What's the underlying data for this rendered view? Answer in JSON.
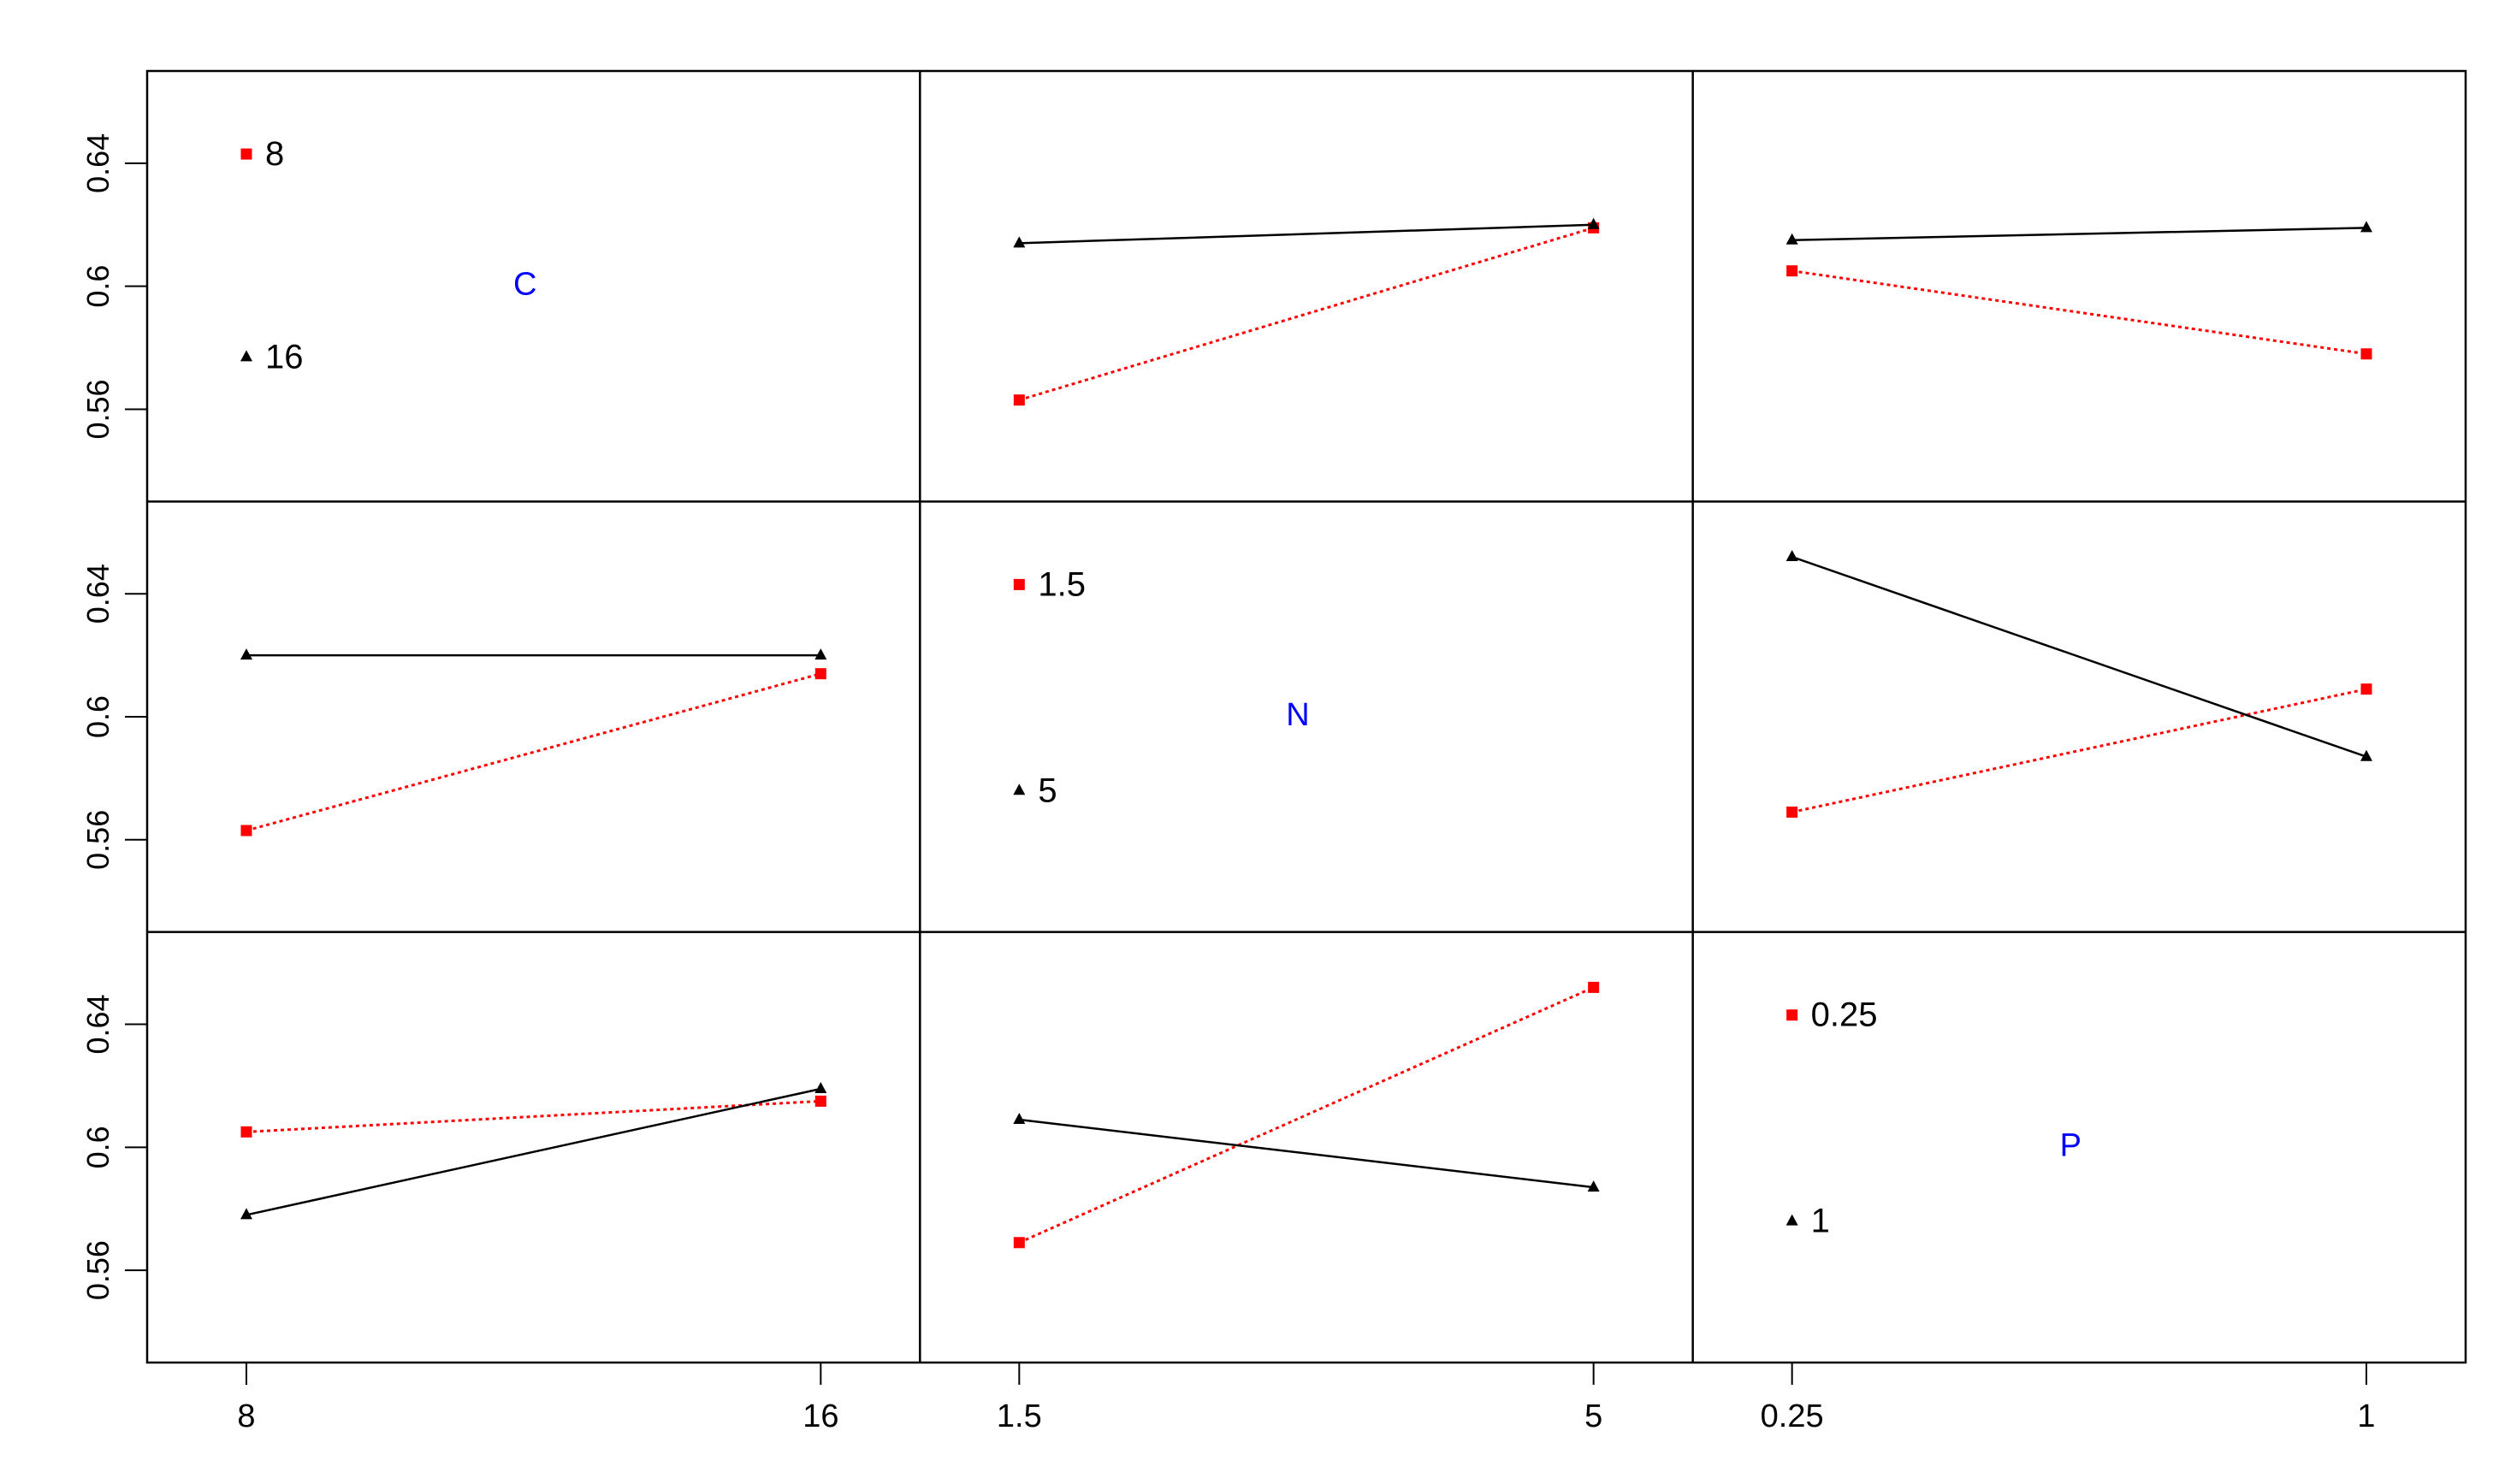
{
  "chart_data": {
    "type": "line",
    "title": "",
    "ylim": [
      0.53,
      0.67
    ],
    "yticks": [
      0.56,
      0.6,
      0.64
    ],
    "ytick_labels": [
      "0.56",
      "0.6",
      "0.64"
    ],
    "factors": [
      {
        "name": "C",
        "levels": [
          "8",
          "16"
        ],
        "color": "#0000ff"
      },
      {
        "name": "N",
        "levels": [
          "1.5",
          "5"
        ],
        "color": "#0000ff"
      },
      {
        "name": "P",
        "levels": [
          "0.25",
          "1"
        ],
        "color": "#0000ff"
      }
    ],
    "series_style": {
      "first_level": {
        "color": "#ff0000",
        "marker": "square",
        "dash": "dotted"
      },
      "second_level": {
        "color": "#000000",
        "marker": "triangle",
        "dash": "solid"
      }
    },
    "panels": [
      {
        "row": 0,
        "col": 0,
        "kind": "legend",
        "factor": "C",
        "legend_values": [
          0.643,
          0.577
        ]
      },
      {
        "row": 0,
        "col": 1,
        "kind": "interaction",
        "x_factor": "N",
        "trace_factor": "C",
        "series": [
          {
            "trace_level": "8",
            "values": [
              0.563,
              0.619
            ]
          },
          {
            "trace_level": "16",
            "values": [
              0.614,
              0.62
            ]
          }
        ]
      },
      {
        "row": 0,
        "col": 2,
        "kind": "interaction",
        "x_factor": "P",
        "trace_factor": "C",
        "series": [
          {
            "trace_level": "8",
            "values": [
              0.605,
              0.578
            ]
          },
          {
            "trace_level": "16",
            "values": [
              0.615,
              0.619
            ]
          }
        ]
      },
      {
        "row": 1,
        "col": 0,
        "kind": "interaction",
        "x_factor": "C",
        "trace_factor": "N",
        "series": [
          {
            "trace_level": "1.5",
            "values": [
              0.563,
              0.614
            ]
          },
          {
            "trace_level": "5",
            "values": [
              0.62,
              0.62
            ]
          }
        ]
      },
      {
        "row": 1,
        "col": 1,
        "kind": "legend",
        "factor": "N",
        "legend_values": [
          0.643,
          0.576
        ]
      },
      {
        "row": 1,
        "col": 2,
        "kind": "interaction",
        "x_factor": "P",
        "trace_factor": "N",
        "series": [
          {
            "trace_level": "1.5",
            "values": [
              0.569,
              0.609
            ]
          },
          {
            "trace_level": "5",
            "values": [
              0.652,
              0.587
            ]
          }
        ]
      },
      {
        "row": 2,
        "col": 0,
        "kind": "interaction",
        "x_factor": "C",
        "trace_factor": "P",
        "series": [
          {
            "trace_level": "0.25",
            "values": [
              0.605,
              0.615
            ]
          },
          {
            "trace_level": "1",
            "values": [
              0.578,
              0.619
            ]
          }
        ]
      },
      {
        "row": 2,
        "col": 1,
        "kind": "interaction",
        "x_factor": "N",
        "trace_factor": "P",
        "series": [
          {
            "trace_level": "0.25",
            "values": [
              0.569,
              0.652
            ]
          },
          {
            "trace_level": "1",
            "values": [
              0.609,
              0.587
            ]
          }
        ]
      },
      {
        "row": 2,
        "col": 2,
        "kind": "legend",
        "factor": "P",
        "legend_values": [
          0.643,
          0.576
        ]
      }
    ]
  }
}
